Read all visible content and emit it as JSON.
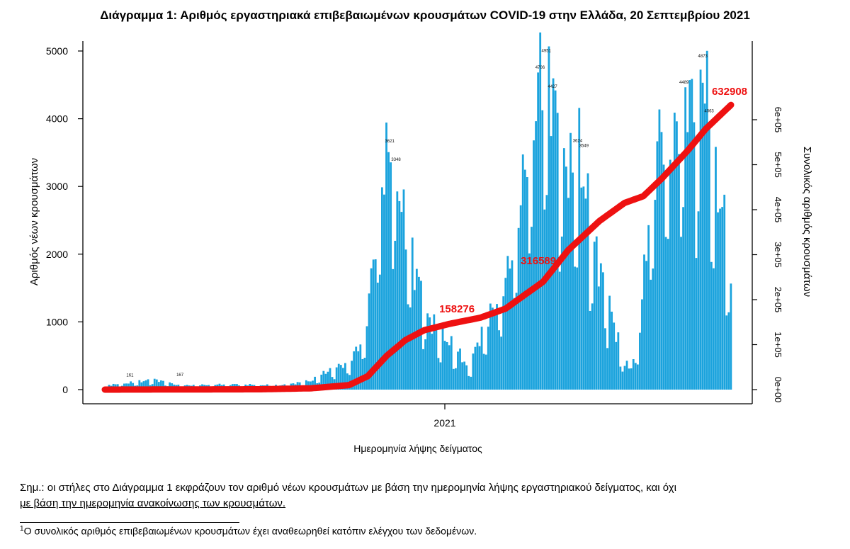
{
  "chart_data": {
    "type": "bar+line",
    "title": "Διάγραμμα 1: Αριθμός εργαστηριακά επιβεβαιωμένων κρουσμάτων COVID-19 στην Ελλάδα, 20 Σεπτεμβρίου 2021",
    "xlabel": "Ημερομηνία λήψης δείγματος",
    "ylabel": "Αριθμός νέων κρουσμάτων",
    "y2label": "Συνολικός αριθμός κρουσμάτων",
    "x_ticks": [
      "2021"
    ],
    "y_ticks": [
      "0",
      "1000",
      "2000",
      "3000",
      "4000",
      "5000"
    ],
    "y2_ticks": [
      "0e+00",
      "1e+05",
      "2e+05",
      "3e+05",
      "4e+05",
      "5e+05",
      "6e+05"
    ],
    "ylim": [
      0,
      5000
    ],
    "y2lim": [
      0,
      600000
    ],
    "bar_color": "#1ba3dd",
    "line_color": "#ee1111",
    "bar_series": {
      "name": "Νέα κρούσματα",
      "anchors": [
        [
          0,
          60
        ],
        [
          0.04,
          100
        ],
        [
          0.08,
          150
        ],
        [
          0.12,
          60
        ],
        [
          0.2,
          80
        ],
        [
          0.28,
          60
        ],
        [
          0.33,
          130
        ],
        [
          0.36,
          300
        ],
        [
          0.39,
          400
        ],
        [
          0.415,
          800
        ],
        [
          0.43,
          2000
        ],
        [
          0.44,
          3000
        ],
        [
          0.455,
          3621
        ],
        [
          0.465,
          3348
        ],
        [
          0.475,
          2600
        ],
        [
          0.485,
          2300
        ],
        [
          0.495,
          1800
        ],
        [
          0.505,
          1500
        ],
        [
          0.515,
          1100
        ],
        [
          0.53,
          900
        ],
        [
          0.55,
          700
        ],
        [
          0.57,
          500
        ],
        [
          0.58,
          300
        ],
        [
          0.6,
          800
        ],
        [
          0.61,
          1000
        ],
        [
          0.63,
          1400
        ],
        [
          0.64,
          1600
        ],
        [
          0.655,
          2300
        ],
        [
          0.665,
          2900
        ],
        [
          0.675,
          3500
        ],
        [
          0.685,
          4000
        ],
        [
          0.695,
          4700
        ],
        [
          0.705,
          4951
        ],
        [
          0.715,
          4400
        ],
        [
          0.725,
          3900
        ],
        [
          0.735,
          3400
        ],
        [
          0.745,
          3200
        ],
        [
          0.755,
          3624
        ],
        [
          0.765,
          3100
        ],
        [
          0.775,
          2500
        ],
        [
          0.785,
          2000
        ],
        [
          0.795,
          1700
        ],
        [
          0.805,
          1300
        ],
        [
          0.815,
          900
        ],
        [
          0.83,
          400
        ],
        [
          0.84,
          300
        ],
        [
          0.855,
          900
        ],
        [
          0.865,
          2200
        ],
        [
          0.875,
          3000
        ],
        [
          0.885,
          3782
        ],
        [
          0.895,
          3850
        ],
        [
          0.905,
          3600
        ],
        [
          0.915,
          3800
        ],
        [
          0.925,
          4489
        ],
        [
          0.935,
          4310
        ],
        [
          0.945,
          4000
        ],
        [
          0.955,
          4873
        ],
        [
          0.965,
          4063
        ],
        [
          0.975,
          3100
        ],
        [
          0.985,
          2700
        ],
        [
          0.995,
          2300
        ],
        [
          1.0,
          1500
        ]
      ]
    },
    "line_series": {
      "name": "Συνολικά κρούσματα",
      "anchors": [
        [
          0,
          0
        ],
        [
          0.25,
          800
        ],
        [
          0.33,
          3000
        ],
        [
          0.39,
          10000
        ],
        [
          0.42,
          30000
        ],
        [
          0.45,
          75000
        ],
        [
          0.48,
          110000
        ],
        [
          0.51,
          132000
        ],
        [
          0.55,
          146000
        ],
        [
          0.6,
          160000
        ],
        [
          0.64,
          180000
        ],
        [
          0.7,
          240000
        ],
        [
          0.74,
          310000
        ],
        [
          0.79,
          375000
        ],
        [
          0.83,
          415000
        ],
        [
          0.86,
          430000
        ],
        [
          0.89,
          470000
        ],
        [
          0.93,
          530000
        ],
        [
          0.96,
          580000
        ],
        [
          1.0,
          632908
        ]
      ]
    },
    "annotations": [
      "158276",
      "316589",
      "632908"
    ],
    "bar_labels_sample": [
      "161",
      "167",
      "3621",
      "3348",
      "4951",
      "4706",
      "4427",
      "4873",
      "4489",
      "4063",
      "3624",
      "3549"
    ]
  },
  "note": {
    "prefix": "Σημ.: οι στήλες στο Διάγραμμα 1 εκφράζουν τον αριθμό νέων κρουσμάτων με βάση την ημερομηνία λήψης εργαστηριακού δείγματος, και όχι",
    "underlined": "με βάση την ημερομηνία ανακοίνωσης των κρουσμάτων."
  },
  "footnote": {
    "mark": "1",
    "text": "Ο συνολικός αριθμός επιβεβαιωμένων κρουσμάτων έχει αναθεωρηθεί κατόπιν ελέγχου των δεδομένων."
  }
}
